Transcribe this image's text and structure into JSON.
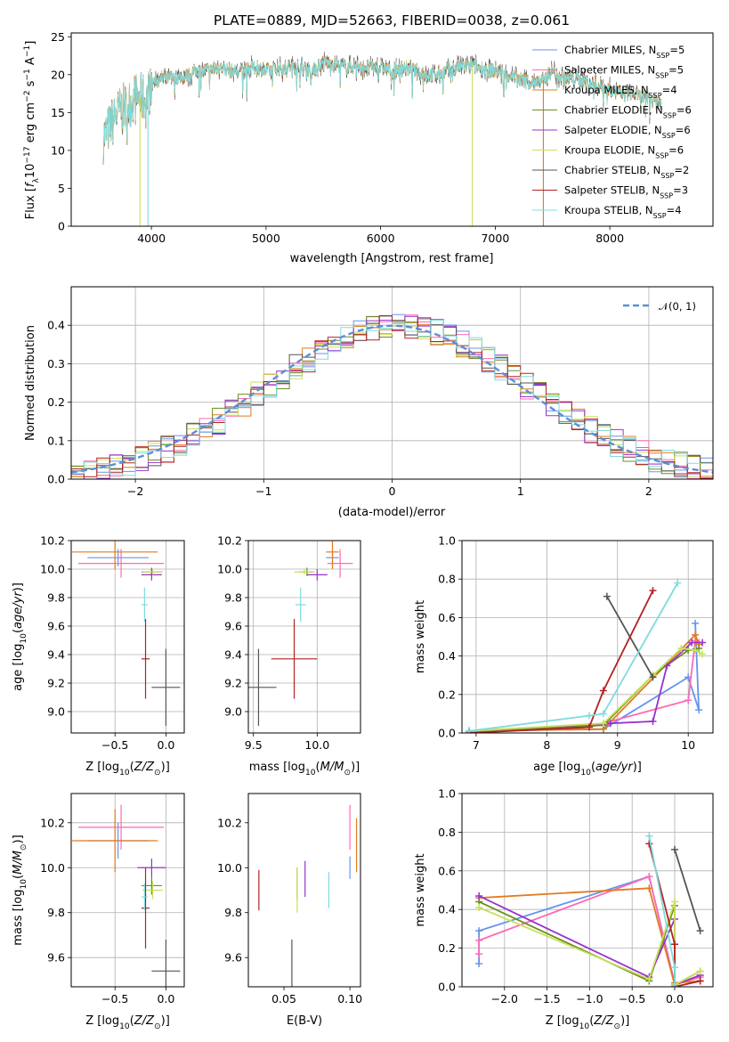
{
  "colors": {
    "chabrier_miles": "#6495ed",
    "salpeter_miles": "#ff69b4",
    "kroupa_miles": "#e07b20",
    "chabrier_elodie": "#6b8e23",
    "salpeter_elodie": "#9932cc",
    "kroupa_elodie": "#c8e25a",
    "chabrier_stelib": "#555555",
    "salpeter_stelib": "#b22222",
    "kroupa_stelib": "#7fdbdf",
    "gaussian": "#5b8fd6",
    "grid": "#b0b0b0"
  },
  "chart_data": [
    {
      "id": "spectrum",
      "type": "line",
      "title": "PLATE=0889, MJD=52663, FIBERID=0038, z=0.061",
      "xlabel": "wavelength [Angstrom, rest frame]",
      "ylabel": "Flux [fλ10⁻¹⁷ erg cm⁻² s⁻¹ A⁻¹]",
      "xlim": [
        3300,
        8900
      ],
      "ylim": [
        0,
        25.5
      ],
      "xticks": [
        4000,
        5000,
        6000,
        7000,
        8000
      ],
      "yticks": [
        0,
        5,
        10,
        15,
        20,
        25
      ],
      "grid": false,
      "legend_position": "top-right",
      "legend": [
        {
          "key": "chabrier_miles",
          "text": "Chabrier MILES, N",
          "sub": "SSP",
          "tail": "=5"
        },
        {
          "key": "salpeter_miles",
          "text": "Salpeter MILES, N",
          "sub": "SSP",
          "tail": "=5"
        },
        {
          "key": "kroupa_miles",
          "text": "Kroupa MILES, N",
          "sub": "SSP",
          "tail": "=4"
        },
        {
          "key": "chabrier_elodie",
          "text": "Chabrier ELODIE, N",
          "sub": "SSP",
          "tail": "=6"
        },
        {
          "key": "salpeter_elodie",
          "text": "Salpeter ELODIE, N",
          "sub": "SSP",
          "tail": "=6"
        },
        {
          "key": "kroupa_elodie",
          "text": "Kroupa ELODIE, N",
          "sub": "SSP",
          "tail": "=6"
        },
        {
          "key": "chabrier_stelib",
          "text": "Chabrier STELIB, N",
          "sub": "SSP",
          "tail": "=2"
        },
        {
          "key": "salpeter_stelib",
          "text": "Salpeter STELIB, N",
          "sub": "SSP",
          "tail": "=3"
        },
        {
          "key": "kroupa_stelib",
          "text": "Kroupa STELIB, N",
          "sub": "SSP",
          "tail": "=4"
        }
      ],
      "spectrum_envelope": {
        "x": [
          3580,
          3650,
          3700,
          3750,
          3800,
          3850,
          3900,
          3950,
          4000,
          4100,
          4200,
          4300,
          4400,
          4500,
          4600,
          4700,
          4800,
          4900,
          5000,
          5100,
          5200,
          5300,
          5400,
          5500,
          5600,
          5700,
          5800,
          5900,
          6000,
          6100,
          6200,
          6300,
          6400,
          6500,
          6600,
          6700,
          6800,
          6900,
          7000,
          7100,
          7200,
          7300,
          7400,
          7500,
          7600,
          7700,
          7800,
          7900,
          8000,
          8100,
          8200,
          8300,
          8400,
          8450
        ],
        "y": [
          11.5,
          13.5,
          15.0,
          15.5,
          16.0,
          17.0,
          17.0,
          16.5,
          19.0,
          19.5,
          19.5,
          19.8,
          20.5,
          20.5,
          21.0,
          20.5,
          20.5,
          21.0,
          20.5,
          20.8,
          21.0,
          21.0,
          20.5,
          21.5,
          21.5,
          21.0,
          21.2,
          21.0,
          21.0,
          20.5,
          21.0,
          20.5,
          20.0,
          20.0,
          20.8,
          21.0,
          21.2,
          20.8,
          20.5,
          20.0,
          19.5,
          19.0,
          19.0,
          20.5,
          19.5,
          19.5,
          19.0,
          18.5,
          18.2,
          17.5,
          17.5,
          17.0,
          16.5,
          16.5
        ]
      },
      "dropouts": [
        {
          "x": 3900,
          "key": "kroupa_elodie"
        },
        {
          "x": 3970,
          "key": "kroupa_stelib"
        },
        {
          "x": 6800,
          "key": "kroupa_elodie"
        },
        {
          "x": 7420,
          "key": "kroupa_miles"
        }
      ]
    },
    {
      "id": "residuals",
      "type": "area",
      "xlabel": "(data-model)/error",
      "ylabel": "Normed distribution",
      "xlim": [
        -2.5,
        2.5
      ],
      "ylim": [
        0,
        0.5
      ],
      "xticks": [
        -2,
        -1,
        0,
        1,
        2
      ],
      "xtick_labels": [
        "−2",
        "−1",
        "0",
        "1",
        "2"
      ],
      "yticks": [
        0.0,
        0.1,
        0.2,
        0.3,
        0.4
      ],
      "grid": true,
      "legend_position": "top-right",
      "legend": [
        {
          "key": "gaussian",
          "text": "𝒩(0, 1)"
        }
      ],
      "bin_width": 0.1,
      "bin_start": -2.5,
      "series_keys": [
        "chabrier_miles",
        "salpeter_miles",
        "kroupa_miles",
        "chabrier_elodie",
        "salpeter_elodie",
        "kroupa_elodie",
        "chabrier_stelib",
        "salpeter_stelib",
        "kroupa_stelib"
      ]
    },
    {
      "id": "age_vs_Z",
      "type": "scatter",
      "xlabel": "Z [log₁₀(Z/Z⊙)]",
      "ylabel": "age  [log₁₀(age/yr)]",
      "xlim": [
        -0.93,
        0.18
      ],
      "ylim": [
        8.85,
        10.2
      ],
      "xticks": [
        -0.5,
        0.0
      ],
      "xtick_labels": [
        "−0.5",
        "0.0"
      ],
      "yticks": [
        9.0,
        9.2,
        9.4,
        9.6,
        9.8,
        10.0,
        10.2
      ],
      "grid": true,
      "points": [
        {
          "key": "chabrier_miles",
          "x": -0.47,
          "y": 10.08,
          "xerr": 0.3,
          "yerr": 0.06
        },
        {
          "key": "salpeter_miles",
          "x": -0.44,
          "y": 10.04,
          "xerr": 0.42,
          "yerr": 0.1
        },
        {
          "key": "kroupa_miles",
          "x": -0.5,
          "y": 10.12,
          "xerr": 0.42,
          "yerr": 0.12
        },
        {
          "key": "chabrier_elodie",
          "x": -0.14,
          "y": 9.98,
          "xerr": 0.1,
          "yerr": 0.03
        },
        {
          "key": "salpeter_elodie",
          "x": -0.14,
          "y": 9.96,
          "xerr": 0.1,
          "yerr": 0.04
        },
        {
          "key": "kroupa_elodie",
          "x": -0.13,
          "y": 9.98,
          "xerr": 0.1,
          "yerr": 0.02
        },
        {
          "key": "chabrier_stelib",
          "x": 0.0,
          "y": 9.17,
          "xerr": 0.14,
          "yerr": 0.27
        },
        {
          "key": "salpeter_stelib",
          "x": -0.2,
          "y": 9.37,
          "xerr": 0.04,
          "yerr": 0.28
        },
        {
          "key": "kroupa_stelib",
          "x": -0.21,
          "y": 9.75,
          "xerr": 0.03,
          "yerr": 0.12
        }
      ]
    },
    {
      "id": "age_vs_mass",
      "type": "scatter",
      "xlabel": "mass [log₁₀(M/M⊙)]",
      "xlim": [
        9.46,
        10.34
      ],
      "ylim": [
        8.85,
        10.2
      ],
      "xticks": [
        9.5,
        10.0
      ],
      "xtick_labels": [
        "9.5",
        "10.0"
      ],
      "yticks": [
        9.0,
        9.2,
        9.4,
        9.6,
        9.8,
        10.0,
        10.2
      ],
      "grid": true,
      "points": [
        {
          "key": "chabrier_miles",
          "x": 10.12,
          "y": 10.08,
          "xerr": 0.05,
          "yerr": 0.06
        },
        {
          "key": "salpeter_miles",
          "x": 10.18,
          "y": 10.04,
          "xerr": 0.1,
          "yerr": 0.1
        },
        {
          "key": "kroupa_miles",
          "x": 10.12,
          "y": 10.12,
          "xerr": 0.05,
          "yerr": 0.12
        },
        {
          "key": "chabrier_elodie",
          "x": 9.92,
          "y": 9.98,
          "xerr": 0.06,
          "yerr": 0.03
        },
        {
          "key": "salpeter_elodie",
          "x": 10.0,
          "y": 9.96,
          "xerr": 0.08,
          "yerr": 0.04
        },
        {
          "key": "kroupa_elodie",
          "x": 9.9,
          "y": 9.98,
          "xerr": 0.08,
          "yerr": 0.02
        },
        {
          "key": "chabrier_stelib",
          "x": 9.54,
          "y": 9.17,
          "xerr": 0.14,
          "yerr": 0.27
        },
        {
          "key": "salpeter_stelib",
          "x": 9.82,
          "y": 9.37,
          "xerr": 0.18,
          "yerr": 0.28
        },
        {
          "key": "kroupa_stelib",
          "x": 9.87,
          "y": 9.75,
          "xerr": 0.04,
          "yerr": 0.12
        }
      ]
    },
    {
      "id": "weight_vs_age",
      "type": "line",
      "xlabel": "age  [log₁₀(age/yr)]",
      "ylabel": "mass weight",
      "xlim": [
        6.8,
        10.35
      ],
      "ylim": [
        0,
        1.0
      ],
      "xticks": [
        7,
        8,
        9,
        10
      ],
      "yticks": [
        0.0,
        0.2,
        0.4,
        0.6,
        0.8,
        1.0
      ],
      "grid": true,
      "series": [
        {
          "key": "chabrier_miles",
          "x": [
            6.9,
            8.8,
            10.0,
            10.15,
            10.1
          ],
          "y": [
            0.01,
            0.02,
            0.29,
            0.12,
            0.57
          ]
        },
        {
          "key": "salpeter_miles",
          "x": [
            6.9,
            8.6,
            10.0,
            10.1,
            10.15
          ],
          "y": [
            0.01,
            0.03,
            0.17,
            0.48,
            0.47
          ]
        },
        {
          "key": "kroupa_miles",
          "x": [
            6.9,
            8.8,
            10.1,
            10.15
          ],
          "y": [
            0.01,
            0.02,
            0.51,
            0.46
          ]
        },
        {
          "key": "chabrier_elodie",
          "x": [
            6.9,
            8.8,
            9.5,
            10.0,
            10.15
          ],
          "y": [
            0.01,
            0.04,
            0.3,
            0.43,
            0.44
          ]
        },
        {
          "key": "salpeter_elodie",
          "x": [
            6.9,
            8.9,
            9.5,
            9.7,
            10.05,
            10.2
          ],
          "y": [
            0.01,
            0.05,
            0.06,
            0.35,
            0.47,
            0.47
          ]
        },
        {
          "key": "kroupa_elodie",
          "x": [
            6.9,
            8.8,
            9.5,
            9.9,
            10.1,
            10.2
          ],
          "y": [
            0.01,
            0.05,
            0.3,
            0.44,
            0.43,
            0.41
          ]
        },
        {
          "key": "chabrier_stelib",
          "x": [
            8.85,
            9.5
          ],
          "y": [
            0.71,
            0.29
          ]
        },
        {
          "key": "salpeter_stelib",
          "x": [
            6.9,
            8.6,
            8.8,
            9.5
          ],
          "y": [
            0.0,
            0.03,
            0.22,
            0.74
          ]
        },
        {
          "key": "kroupa_stelib",
          "x": [
            6.9,
            8.6,
            8.8,
            9.85
          ],
          "y": [
            0.01,
            0.09,
            0.1,
            0.78
          ]
        }
      ]
    },
    {
      "id": "mass_vs_Z",
      "type": "scatter",
      "xlabel": "Z [log₁₀(Z/Z⊙)]",
      "ylabel": "mass [log₁₀(M/M⊙)]",
      "xlim": [
        -0.93,
        0.18
      ],
      "ylim": [
        9.47,
        10.33
      ],
      "xticks": [
        -0.5,
        0.0
      ],
      "xtick_labels": [
        "−0.5",
        "0.0"
      ],
      "yticks": [
        9.6,
        9.8,
        10.0,
        10.2
      ],
      "grid": true,
      "points": [
        {
          "key": "chabrier_miles",
          "x": -0.47,
          "y": 10.12,
          "xerr": 0.3,
          "yerr": 0.08
        },
        {
          "key": "salpeter_miles",
          "x": -0.44,
          "y": 10.18,
          "xerr": 0.42,
          "yerr": 0.1
        },
        {
          "key": "kroupa_miles",
          "x": -0.5,
          "y": 10.12,
          "xerr": 0.42,
          "yerr": 0.14
        },
        {
          "key": "chabrier_elodie",
          "x": -0.14,
          "y": 9.92,
          "xerr": 0.1,
          "yerr": 0.04
        },
        {
          "key": "salpeter_elodie",
          "x": -0.14,
          "y": 10.0,
          "xerr": 0.14,
          "yerr": 0.04
        },
        {
          "key": "kroupa_elodie",
          "x": -0.13,
          "y": 9.9,
          "xerr": 0.1,
          "yerr": 0.04
        },
        {
          "key": "chabrier_stelib",
          "x": 0.0,
          "y": 9.54,
          "xerr": 0.14,
          "yerr": 0.14
        },
        {
          "key": "salpeter_stelib",
          "x": -0.2,
          "y": 9.82,
          "xerr": 0.04,
          "yerr": 0.18
        },
        {
          "key": "kroupa_stelib",
          "x": -0.21,
          "y": 9.87,
          "xerr": 0.03,
          "yerr": 0.06
        }
      ]
    },
    {
      "id": "mass_vs_ebv",
      "type": "scatter",
      "xlabel": "E(B-V)",
      "xlim": [
        0.023,
        0.108
      ],
      "ylim": [
        9.47,
        10.33
      ],
      "xticks": [
        0.05,
        0.1
      ],
      "xtick_labels": [
        "0.05",
        "0.10"
      ],
      "yticks": [
        9.6,
        9.8,
        10.0,
        10.2
      ],
      "grid": false,
      "points": [
        {
          "key": "chabrier_miles",
          "x": 0.1,
          "y": 10.0,
          "yerr": 0.05
        },
        {
          "key": "salpeter_miles",
          "x": 0.1,
          "y": 10.18,
          "yerr": 0.1
        },
        {
          "key": "kroupa_miles",
          "x": 0.105,
          "y": 10.1,
          "yerr": 0.12
        },
        {
          "key": "chabrier_elodie",
          "x": 0.06,
          "y": 9.93,
          "yerr": 0.07
        },
        {
          "key": "salpeter_elodie",
          "x": 0.066,
          "y": 9.95,
          "yerr": 0.08
        },
        {
          "key": "kroupa_elodie",
          "x": 0.06,
          "y": 9.9,
          "yerr": 0.1
        },
        {
          "key": "chabrier_stelib",
          "x": 0.056,
          "y": 9.54,
          "yerr": 0.14
        },
        {
          "key": "salpeter_stelib",
          "x": 0.031,
          "y": 9.9,
          "yerr": 0.09
        },
        {
          "key": "kroupa_stelib",
          "x": 0.084,
          "y": 9.9,
          "yerr": 0.08
        }
      ]
    },
    {
      "id": "weight_vs_Z",
      "type": "line",
      "xlabel": "Z [log₁₀(Z/Z⊙)]",
      "ylabel": "mass weight",
      "xlim": [
        -2.5,
        0.45
      ],
      "ylim": [
        0,
        1.0
      ],
      "xticks": [
        -2.0,
        -1.5,
        -1.0,
        -0.5,
        0.0
      ],
      "xtick_labels": [
        "−2.0",
        "−1.5",
        "−1.0",
        "−0.5",
        "0.0"
      ],
      "yticks": [
        0.0,
        0.2,
        0.4,
        0.6,
        0.8,
        1.0
      ],
      "grid": true,
      "series": [
        {
          "key": "chabrier_miles",
          "x": [
            -2.3,
            -2.3,
            -0.3,
            0.0,
            0.0
          ],
          "y": [
            0.12,
            0.29,
            0.57,
            0.02,
            0.0
          ]
        },
        {
          "key": "salpeter_miles",
          "x": [
            -2.3,
            -2.3,
            -0.3,
            0.0,
            0.3
          ],
          "y": [
            0.17,
            0.24,
            0.57,
            0.01,
            0.05
          ]
        },
        {
          "key": "kroupa_miles",
          "x": [
            -2.3,
            -0.3,
            0.0,
            0.0,
            0.3
          ],
          "y": [
            0.46,
            0.51,
            0.01,
            0.02,
            0.03
          ]
        },
        {
          "key": "chabrier_elodie",
          "x": [
            -2.3,
            -0.3,
            0.0,
            0.0,
            0.3
          ],
          "y": [
            0.44,
            0.03,
            0.42,
            0.01,
            0.08
          ]
        },
        {
          "key": "salpeter_elodie",
          "x": [
            -2.3,
            -0.3,
            0.0,
            0.0,
            0.3
          ],
          "y": [
            0.47,
            0.05,
            0.35,
            0.01,
            0.06
          ]
        },
        {
          "key": "kroupa_elodie",
          "x": [
            -2.3,
            -0.3,
            0.0,
            0.0,
            0.3
          ],
          "y": [
            0.41,
            0.04,
            0.44,
            0.01,
            0.08
          ]
        },
        {
          "key": "chabrier_stelib",
          "x": [
            0.0,
            0.3
          ],
          "y": [
            0.71,
            0.29
          ]
        },
        {
          "key": "salpeter_stelib",
          "x": [
            -0.3,
            0.0,
            0.0,
            0.3
          ],
          "y": [
            0.74,
            0.22,
            0.0,
            0.03
          ]
        },
        {
          "key": "kroupa_stelib",
          "x": [
            -0.3,
            0.0,
            0.0
          ],
          "y": [
            0.78,
            0.1,
            0.0
          ]
        }
      ]
    }
  ]
}
